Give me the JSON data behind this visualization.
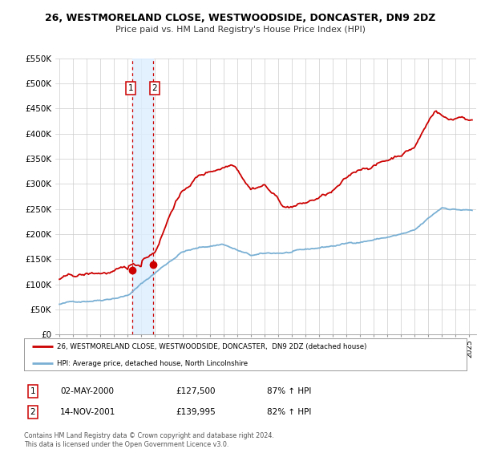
{
  "title": "26, WESTMORELAND CLOSE, WESTWOODSIDE, DONCASTER, DN9 2DZ",
  "subtitle": "Price paid vs. HM Land Registry's House Price Index (HPI)",
  "ylim": [
    0,
    550000
  ],
  "yticks": [
    0,
    50000,
    100000,
    150000,
    200000,
    250000,
    300000,
    350000,
    400000,
    450000,
    500000,
    550000
  ],
  "ytick_labels": [
    "£0",
    "£50K",
    "£100K",
    "£150K",
    "£200K",
    "£250K",
    "£300K",
    "£350K",
    "£400K",
    "£450K",
    "£500K",
    "£550K"
  ],
  "xlim_start": 1994.7,
  "xlim_end": 2025.5,
  "xticks": [
    1995,
    1996,
    1997,
    1998,
    1999,
    2000,
    2001,
    2002,
    2003,
    2004,
    2005,
    2006,
    2007,
    2008,
    2009,
    2010,
    2011,
    2012,
    2013,
    2014,
    2015,
    2016,
    2017,
    2018,
    2019,
    2020,
    2021,
    2022,
    2023,
    2024,
    2025
  ],
  "sale1_x": 2000.33,
  "sale1_y": 127500,
  "sale2_x": 2001.87,
  "sale2_y": 139995,
  "sale1_label": "1",
  "sale2_label": "2",
  "property_color": "#cc0000",
  "hpi_color": "#7ab0d4",
  "vshade_color": "#ddeeff",
  "vline_color": "#cc0000",
  "legend1_text": "26, WESTMORELAND CLOSE, WESTWOODSIDE, DONCASTER,  DN9 2DZ (detached house)",
  "legend2_text": "HPI: Average price, detached house, North Lincolnshire",
  "table_row1": [
    "1",
    "02-MAY-2000",
    "£127,500",
    "87% ↑ HPI"
  ],
  "table_row2": [
    "2",
    "14-NOV-2001",
    "£139,995",
    "82% ↑ HPI"
  ],
  "footnote": "Contains HM Land Registry data © Crown copyright and database right 2024.\nThis data is licensed under the Open Government Licence v3.0.",
  "background_color": "#ffffff",
  "grid_color": "#cccccc"
}
